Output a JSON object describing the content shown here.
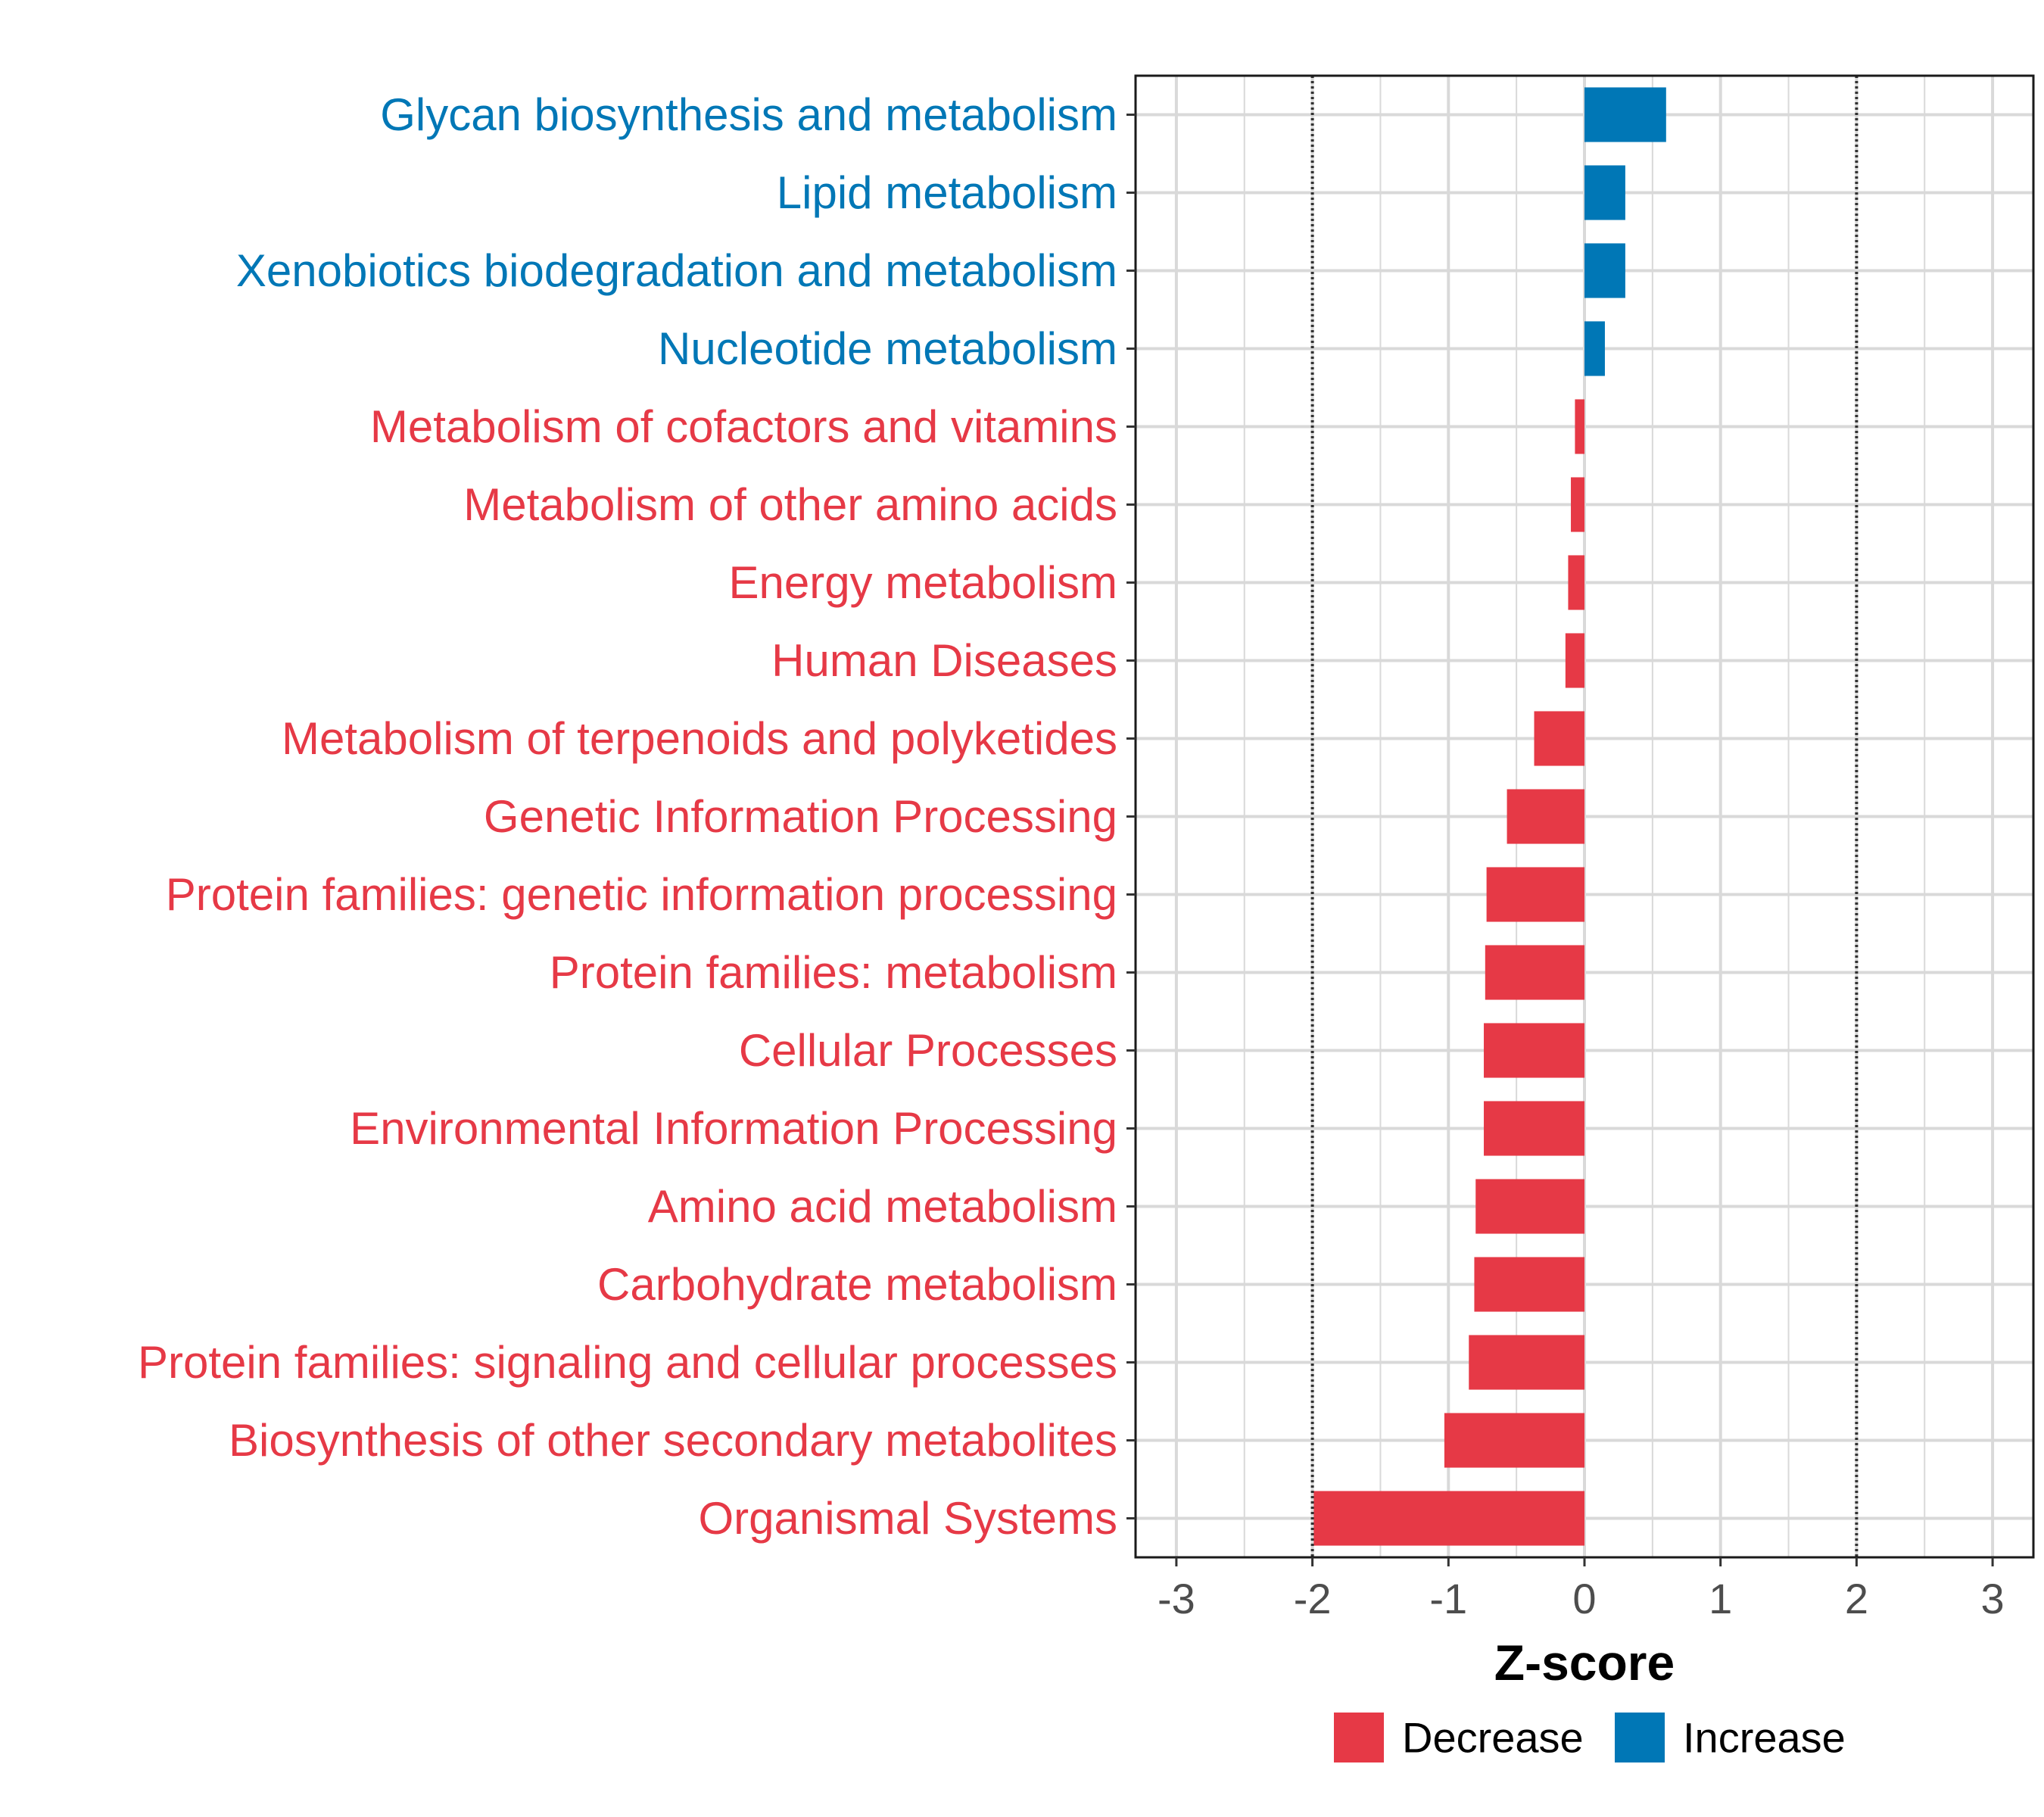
{
  "colors": {
    "decrease": "#e63946",
    "increase": "#0077b6"
  },
  "chart_data": {
    "type": "bar",
    "orientation": "horizontal",
    "xlabel": "Z-score",
    "xlim": [
      -3.3,
      3.3
    ],
    "x_ticks": [
      -3,
      -2,
      -1,
      0,
      1,
      2,
      3
    ],
    "x_tick_labels": [
      "-3",
      "-2",
      "-1",
      "0",
      "1",
      "2",
      "3"
    ],
    "reference_lines": [
      -2,
      2
    ],
    "grid": true,
    "legend_position": "bottom",
    "legend": [
      {
        "label": "Decrease",
        "group": "decrease"
      },
      {
        "label": "Increase",
        "group": "increase"
      }
    ],
    "categories": [
      "Glycan biosynthesis and metabolism",
      "Lipid metabolism",
      "Xenobiotics biodegradation and metabolism",
      "Nucleotide metabolism",
      "Metabolism of cofactors and vitamins",
      "Metabolism of other amino acids",
      "Energy metabolism",
      "Human Diseases",
      "Metabolism of terpenoids and polyketides",
      "Genetic Information Processing",
      "Protein families: genetic information processing",
      "Protein families: metabolism",
      "Cellular Processes",
      "Environmental Information Processing",
      "Amino acid metabolism",
      "Carbohydrate metabolism",
      "Protein families: signaling and cellular processes",
      "Biosynthesis of other secondary metabolites",
      "Organismal Systems"
    ],
    "values": [
      0.6,
      0.3,
      0.3,
      0.15,
      -0.07,
      -0.1,
      -0.12,
      -0.14,
      -0.37,
      -0.57,
      -0.72,
      -0.73,
      -0.74,
      -0.74,
      -0.8,
      -0.81,
      -0.85,
      -1.03,
      -1.99
    ],
    "groups": [
      "increase",
      "increase",
      "increase",
      "increase",
      "decrease",
      "decrease",
      "decrease",
      "decrease",
      "decrease",
      "decrease",
      "decrease",
      "decrease",
      "decrease",
      "decrease",
      "decrease",
      "decrease",
      "decrease",
      "decrease",
      "decrease"
    ]
  }
}
